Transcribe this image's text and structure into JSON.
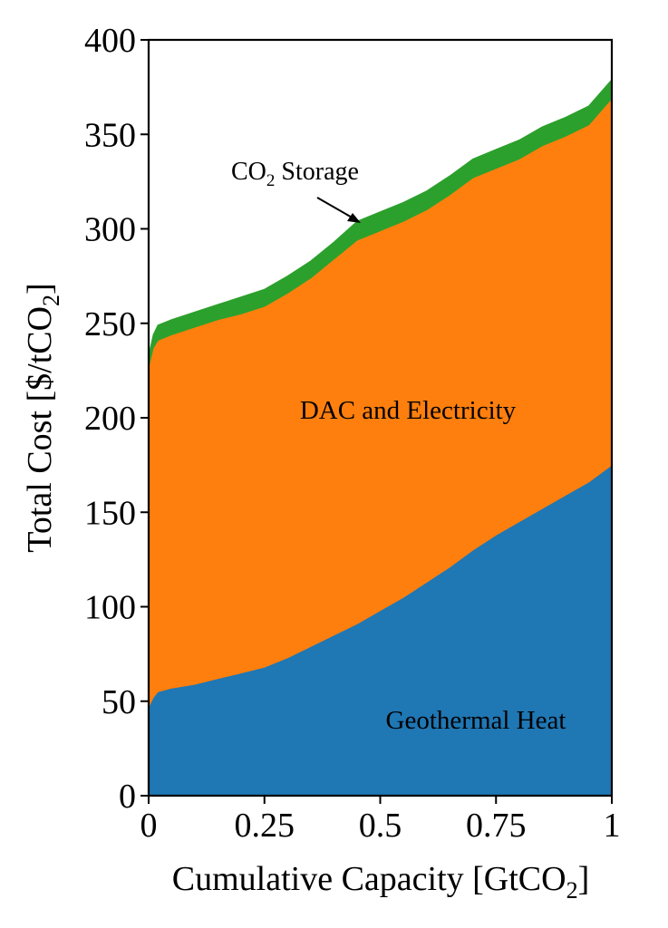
{
  "chart_data": {
    "type": "area",
    "stacked": true,
    "xlabel": {
      "main": "Cumulative Capacity [GtCO",
      "sub": "2",
      "tail": "]"
    },
    "ylabel": {
      "main": "Total Cost [$/tCO",
      "sub": "2",
      "tail": "]"
    },
    "xlim": [
      0,
      1
    ],
    "ylim": [
      0,
      400
    ],
    "xticks": [
      0,
      0.25,
      0.5,
      0.75,
      1
    ],
    "xtick_labels": [
      "0",
      "0.25",
      "0.5",
      "0.75",
      "1"
    ],
    "yticks": [
      0,
      50,
      100,
      150,
      200,
      250,
      300,
      350,
      400
    ],
    "ytick_labels": [
      "0",
      "50",
      "100",
      "150",
      "200",
      "250",
      "300",
      "350",
      "400"
    ],
    "grid": false,
    "x": [
      0,
      0.01,
      0.02,
      0.05,
      0.1,
      0.15,
      0.2,
      0.25,
      0.3,
      0.35,
      0.4,
      0.45,
      0.5,
      0.55,
      0.6,
      0.65,
      0.7,
      0.75,
      0.8,
      0.85,
      0.9,
      0.95,
      1.0
    ],
    "series": [
      {
        "name": "Geothermal Heat",
        "color": "#1f77b4",
        "values": [
          47,
          52,
          55,
          57,
          59,
          62,
          65,
          68,
          73,
          79,
          85,
          91,
          98,
          105,
          113,
          121,
          130,
          138,
          145,
          152,
          159,
          166,
          175
        ]
      },
      {
        "name": "DAC and Electricity",
        "color": "#ff7f0e",
        "values": [
          180,
          185,
          186,
          187,
          189,
          190,
          190,
          191,
          193,
          195,
          199,
          203,
          201,
          199,
          197,
          197,
          197,
          194,
          192,
          192,
          190,
          189,
          194
        ]
      },
      {
        "name": "CO2 Storage",
        "color": "#2ca02c",
        "values": [
          6,
          7,
          8,
          8,
          8,
          8,
          9,
          9,
          9,
          9,
          9,
          10,
          10,
          10,
          10,
          10,
          10,
          10,
          10,
          10,
          10,
          10,
          10
        ]
      }
    ],
    "labels": {
      "geothermal": "Geothermal Heat",
      "dac": "DAC and Electricity",
      "storage_main": "CO",
      "storage_sub": "2",
      "storage_tail": " Storage"
    }
  }
}
